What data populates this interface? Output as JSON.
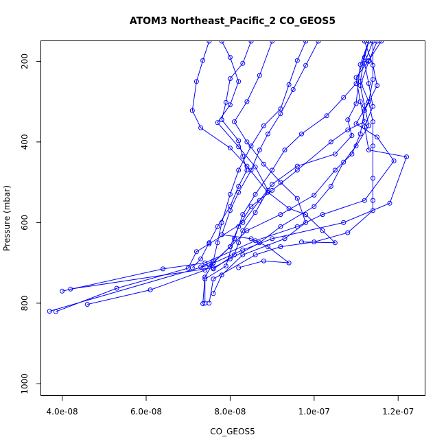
{
  "chart_data": {
    "type": "line",
    "title": "ATOM3 Northeast_Pacific_2 CO_GEOS5",
    "xlabel": "CO_GEOS5",
    "ylabel": "Pressure (mbar)",
    "xlim": [
      3.5e-08,
      1.265e-07
    ],
    "ylim": [
      1030,
      150
    ],
    "y_reversed": true,
    "marker": "open-circle",
    "line_color": "#0000ff",
    "grid": false,
    "legend": "none",
    "x_ticks": [
      {
        "value": 4e-08,
        "label": "4.0e-08"
      },
      {
        "value": 6e-08,
        "label": "6.0e-08"
      },
      {
        "value": 8e-08,
        "label": "8.0e-08"
      },
      {
        "value": 1e-07,
        "label": "1.0e-07"
      },
      {
        "value": 1.2e-07,
        "label": "1.2e-07"
      }
    ],
    "y_ticks": [
      {
        "value": 200,
        "label": "200"
      },
      {
        "value": 400,
        "label": "400"
      },
      {
        "value": 600,
        "label": "600"
      },
      {
        "value": 800,
        "label": "800"
      },
      {
        "value": 1000,
        "label": "1000"
      }
    ],
    "series": [
      {
        "points": [
          [
            1.15e-07,
            150
          ],
          [
            1.13e-07,
            200
          ],
          [
            1.11e-07,
            260
          ],
          [
            1.12e-07,
            310
          ],
          [
            1.13e-07,
            360
          ],
          [
            1.1e-07,
            410
          ],
          [
            1.07e-07,
            450
          ],
          [
            1.04e-07,
            510
          ],
          [
            1e-07,
            560
          ],
          [
            9.2e-08,
            610
          ],
          [
            8.7e-08,
            650
          ],
          [
            8e-08,
            690
          ],
          [
            7.6e-08,
            712
          ],
          [
            4.2e-08,
            765
          ]
        ]
      },
      {
        "points": [
          [
            1.14e-07,
            150
          ],
          [
            1.12e-07,
            205
          ],
          [
            1.13e-07,
            255
          ],
          [
            1.14e-07,
            312
          ],
          [
            1.12e-07,
            362
          ],
          [
            1.13e-07,
            420
          ],
          [
            1.22e-07,
            437
          ],
          [
            1.18e-07,
            552
          ],
          [
            1.07e-07,
            600
          ],
          [
            9e-08,
            640
          ],
          [
            8.3e-08,
            668
          ],
          [
            7.5e-08,
            705
          ],
          [
            3.7e-08,
            820
          ]
        ]
      },
      {
        "points": [
          [
            1.13e-07,
            150
          ],
          [
            1.12e-07,
            190
          ],
          [
            1.11e-07,
            250
          ],
          [
            1.13e-07,
            300
          ],
          [
            1.1e-07,
            355
          ],
          [
            1.15e-07,
            388
          ],
          [
            1.19e-07,
            447
          ],
          [
            1.12e-07,
            545
          ],
          [
            1.02e-07,
            580
          ],
          [
            9.6e-08,
            610
          ],
          [
            8.6e-08,
            645
          ],
          [
            7.4e-08,
            700
          ],
          [
            6.4e-08,
            715
          ],
          [
            4e-08,
            770
          ]
        ]
      },
      {
        "points": [
          [
            1.13e-07,
            150
          ],
          [
            1.11e-07,
            208
          ],
          [
            1.1e-07,
            305
          ],
          [
            1.08e-07,
            345
          ],
          [
            1.09e-07,
            384
          ],
          [
            1.05e-07,
            430
          ],
          [
            9.6e-08,
            460
          ],
          [
            9e-08,
            505
          ],
          [
            8.7e-08,
            545
          ],
          [
            8.3e-08,
            600
          ],
          [
            7.5e-08,
            653
          ],
          [
            7.2e-08,
            672
          ],
          [
            7e-08,
            713
          ],
          [
            5.3e-08,
            763
          ],
          [
            3.85e-08,
            821
          ]
        ]
      },
      {
        "points": [
          [
            1.16e-07,
            150
          ],
          [
            1.13e-07,
            198
          ],
          [
            1.1e-07,
            240
          ],
          [
            1.11e-07,
            300
          ],
          [
            1.12e-07,
            350
          ],
          [
            1.08e-07,
            370
          ],
          [
            1.04e-07,
            400
          ],
          [
            9.6e-08,
            470
          ],
          [
            9e-08,
            520
          ],
          [
            8.5e-08,
            560
          ],
          [
            8.2e-08,
            610
          ],
          [
            8e-08,
            660
          ],
          [
            7.4e-08,
            718
          ],
          [
            6.1e-08,
            767
          ],
          [
            4.6e-08,
            803
          ]
        ]
      },
      {
        "points": [
          [
            1.12e-07,
            150
          ],
          [
            1.14e-07,
            210
          ],
          [
            1.15e-07,
            260
          ],
          [
            1.12e-07,
            322
          ],
          [
            1.11e-07,
            380
          ],
          [
            1.09e-07,
            430
          ],
          [
            1.05e-07,
            470
          ],
          [
            1e-07,
            532
          ],
          [
            9.2e-08,
            580
          ],
          [
            8.4e-08,
            620
          ],
          [
            8e-08,
            660
          ],
          [
            7.6e-08,
            700
          ],
          [
            7.4e-08,
            735
          ],
          [
            7.35e-08,
            801
          ]
        ]
      },
      {
        "points": [
          [
            1.14e-07,
            150
          ],
          [
            1.14e-07,
            245
          ],
          [
            1.13e-07,
            300
          ],
          [
            1.14e-07,
            350
          ],
          [
            1.14e-07,
            410
          ],
          [
            1.14e-07,
            490
          ],
          [
            1.14e-07,
            545
          ],
          [
            1.14e-07,
            570
          ],
          [
            1.08e-07,
            625
          ],
          [
            1e-07,
            648
          ],
          [
            9.2e-08,
            660
          ],
          [
            8.6e-08,
            680
          ],
          [
            7.6e-08,
            740
          ],
          [
            7.5e-08,
            800
          ]
        ]
      },
      {
        "points": [
          [
            1.13e-07,
            150
          ],
          [
            1.1e-07,
            255
          ],
          [
            1.07e-07,
            290
          ],
          [
            1.03e-07,
            335
          ],
          [
            9.7e-08,
            380
          ],
          [
            9.3e-08,
            420
          ],
          [
            9e-08,
            470
          ],
          [
            8.6e-08,
            530
          ],
          [
            8.3e-08,
            580
          ],
          [
            8.1e-08,
            640
          ],
          [
            7.9e-08,
            708
          ],
          [
            7.4e-08,
            740
          ],
          [
            7.4e-08,
            800
          ]
        ]
      },
      {
        "points": [
          [
            9.8e-08,
            150
          ],
          [
            9.6e-08,
            198
          ],
          [
            9.4e-08,
            258
          ],
          [
            9.2e-08,
            318
          ],
          [
            8.8e-08,
            360
          ],
          [
            8.5e-08,
            410
          ],
          [
            8.2e-08,
            470
          ],
          [
            8e-08,
            530
          ],
          [
            7.8e-08,
            600
          ],
          [
            7.7e-08,
            650
          ],
          [
            7.6e-08,
            695
          ],
          [
            7.3e-08,
            710
          ]
        ]
      },
      {
        "points": [
          [
            7.5e-08,
            150
          ],
          [
            7.35e-08,
            198
          ],
          [
            7.2e-08,
            250
          ],
          [
            7.1e-08,
            322
          ],
          [
            7.3e-08,
            365
          ],
          [
            8e-08,
            415
          ],
          [
            8.4e-08,
            460
          ],
          [
            8.9e-08,
            525
          ],
          [
            9.4e-08,
            565
          ],
          [
            9.8e-08,
            580
          ],
          [
            1.02e-07,
            620
          ],
          [
            1.05e-07,
            650
          ],
          [
            9.7e-08,
            648
          ]
        ]
      },
      {
        "points": [
          [
            7.8e-08,
            150
          ],
          [
            8e-08,
            190
          ],
          [
            8.2e-08,
            250
          ],
          [
            8e-08,
            308
          ],
          [
            7.7e-08,
            352
          ],
          [
            8.2e-08,
            412
          ],
          [
            8.6e-08,
            462
          ],
          [
            8.9e-08,
            520
          ],
          [
            8.6e-08,
            575
          ],
          [
            8.3e-08,
            620
          ],
          [
            8.2e-08,
            650
          ],
          [
            8.1e-08,
            680
          ],
          [
            7.6e-08,
            715
          ]
        ]
      },
      {
        "points": [
          [
            8.5e-08,
            150
          ],
          [
            8.3e-08,
            205
          ],
          [
            8e-08,
            243
          ],
          [
            7.9e-08,
            302
          ],
          [
            7.8e-08,
            345
          ],
          [
            8.2e-08,
            397
          ],
          [
            8.3e-08,
            436
          ],
          [
            8.4e-08,
            470
          ],
          [
            8.2e-08,
            510
          ],
          [
            8e-08,
            560
          ],
          [
            7.7e-08,
            610
          ],
          [
            7.5e-08,
            650
          ],
          [
            7.3e-08,
            690
          ],
          [
            7.1e-08,
            712
          ]
        ]
      },
      {
        "points": [
          [
            9e-08,
            150
          ],
          [
            8.7e-08,
            235
          ],
          [
            8.4e-08,
            300
          ],
          [
            8.1e-08,
            350
          ],
          [
            8.4e-08,
            400
          ],
          [
            8.8e-08,
            455
          ],
          [
            9.2e-08,
            500
          ],
          [
            9.6e-08,
            540
          ],
          [
            9.8e-08,
            600
          ],
          [
            9.3e-08,
            640
          ],
          [
            8.3e-08,
            680
          ],
          [
            7.8e-08,
            730
          ],
          [
            7.6e-08,
            776
          ]
        ]
      },
      {
        "points": [
          [
            1.01e-07,
            150
          ],
          [
            9.8e-08,
            210
          ],
          [
            9.5e-08,
            270
          ],
          [
            9.2e-08,
            330
          ],
          [
            8.9e-08,
            380
          ],
          [
            8.7e-08,
            420
          ],
          [
            8.5e-08,
            470
          ],
          [
            8.2e-08,
            525
          ],
          [
            8e-08,
            570
          ],
          [
            7.8e-08,
            630
          ],
          [
            8.5e-08,
            640
          ],
          [
            8.9e-08,
            660
          ],
          [
            9.4e-08,
            700
          ],
          [
            8.8e-08,
            695
          ],
          [
            8.2e-08,
            712
          ]
        ]
      }
    ]
  }
}
